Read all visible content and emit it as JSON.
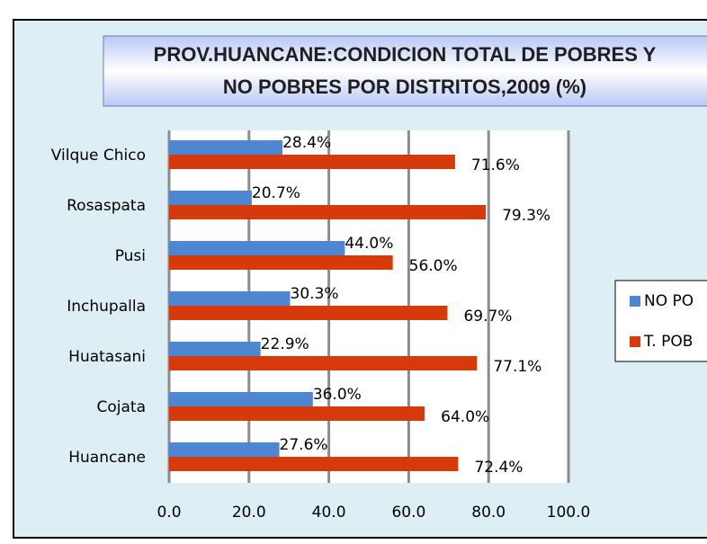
{
  "chart_data": {
    "type": "hbar",
    "title": [
      "PROV.HUANCANE:CONDICION TOTAL DE POBRES Y",
      "NO POBRES POR DISTRITOS,2009 (%)"
    ],
    "categories": [
      "Vilque Chico",
      "Rosaspata",
      "Pusi",
      "Inchupalla",
      "Huatasani",
      "Cojata",
      "Huancane"
    ],
    "series": [
      {
        "name": "NO PO",
        "color": "#4f86d1",
        "values": [
          28.4,
          20.7,
          44.0,
          30.3,
          22.9,
          36.0,
          27.6
        ],
        "value_labels": [
          "28.4%",
          "20.7%",
          "44.0%",
          "30.3%",
          "22.9%",
          "36.0%",
          "27.6%"
        ]
      },
      {
        "name": "T. POB",
        "color": "#d63a0b",
        "values": [
          71.6,
          79.3,
          56.0,
          69.7,
          77.1,
          64.0,
          72.4
        ],
        "value_labels": [
          "71.6%",
          "79.3%",
          "56.0%",
          "69.7%",
          "77.1%",
          "64.0%",
          "72.4%"
        ]
      }
    ],
    "xlim": [
      0,
      100
    ],
    "xticks": [
      {
        "value": 0,
        "label": "0.0"
      },
      {
        "value": 20,
        "label": "20.0"
      },
      {
        "value": 40,
        "label": "40.0"
      },
      {
        "value": 60,
        "label": "60.0"
      },
      {
        "value": 80,
        "label": "80.0"
      },
      {
        "value": 100,
        "label": "100.0"
      }
    ],
    "grid": true
  }
}
